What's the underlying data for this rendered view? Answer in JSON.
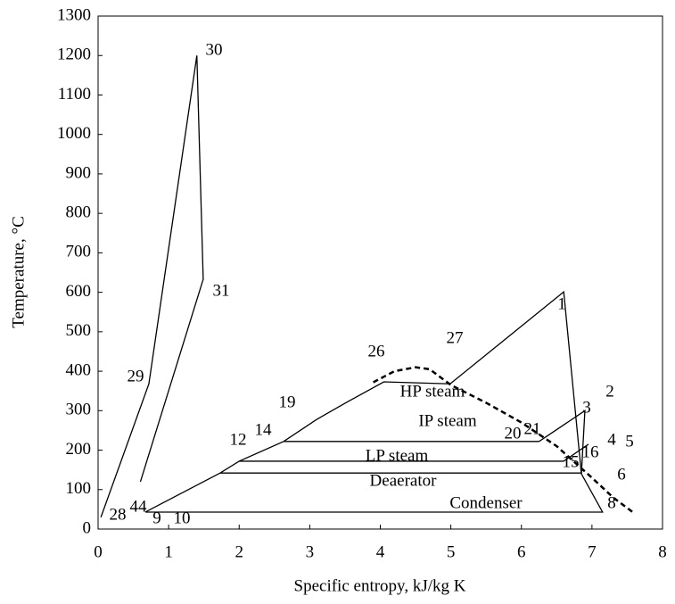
{
  "chart_data": {
    "type": "line",
    "xlabel": "Specific entropy, kJ/kg K",
    "ylabel": "Temperature, °C",
    "xlim": [
      0,
      8
    ],
    "ylim": [
      0,
      1300
    ],
    "xticks": [
      0,
      1,
      2,
      3,
      4,
      5,
      6,
      7,
      8
    ],
    "yticks": [
      0,
      100,
      200,
      300,
      400,
      500,
      600,
      700,
      800,
      900,
      1000,
      1100,
      1200,
      1300
    ],
    "series": [
      {
        "color": "#000000",
        "dash": false,
        "x": [
          0.04,
          0.72,
          1.4,
          1.49,
          0.6
        ],
        "values": [
          30,
          368,
          1200,
          633,
          120
        ]
      },
      {
        "color": "#000000",
        "dash": false,
        "x": [
          0.67,
          1.73,
          2.0,
          2.63,
          3.1,
          3.54,
          4.05,
          4.99,
          6.6,
          6.85,
          7.15,
          0.67
        ],
        "values": [
          43,
          142,
          172,
          222,
          278,
          323,
          373,
          368,
          601,
          140,
          43,
          43
        ]
      },
      {
        "color": "#000000",
        "dash": false,
        "x": [
          1.73,
          6.85
        ],
        "values": [
          142,
          142
        ]
      },
      {
        "color": "#000000",
        "dash": false,
        "x": [
          2.0,
          6.6
        ],
        "values": [
          172,
          172
        ]
      },
      {
        "color": "#000000",
        "dash": false,
        "x": [
          2.63,
          6.25
        ],
        "values": [
          222,
          222
        ]
      },
      {
        "color": "#000000",
        "dash": false,
        "x": [
          6.25,
          6.9,
          6.85
        ],
        "values": [
          222,
          300,
          140
        ]
      },
      {
        "color": "#000000",
        "dash": false,
        "x": [
          6.6,
          6.95
        ],
        "values": [
          172,
          215
        ]
      },
      {
        "color": "#000000",
        "dash": true,
        "x": [
          3.9,
          4.2,
          4.5,
          4.7,
          5.0,
          5.5,
          6.0,
          6.5,
          7.0,
          7.3,
          7.6
        ],
        "values": [
          372,
          400,
          410,
          405,
          365,
          320,
          270,
          210,
          130,
          80,
          40
        ]
      }
    ],
    "annotations": [
      "30",
      "31",
      "29",
      "44",
      "28",
      "9",
      "10",
      "12",
      "14",
      "19",
      "26",
      "27",
      "1",
      "2",
      "3",
      "20",
      "21",
      "4",
      "5",
      "15",
      "16",
      "6",
      "8",
      "HP steam",
      "IP steam",
      "LP steam",
      "Deaerator",
      "Condenser"
    ]
  }
}
